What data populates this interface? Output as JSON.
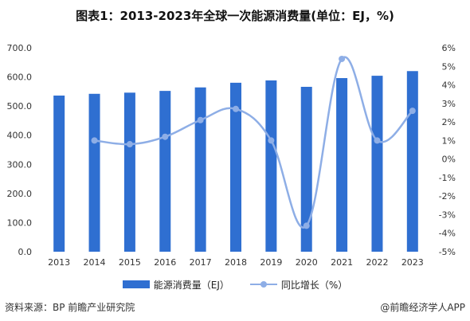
{
  "title": "图表1：2013-2023年全球一次能源消费量(单位：EJ，%)",
  "source": "资料来源：BP 前瞻产业研究院",
  "brand": "@前瞻经济学人APP",
  "chart_data": {
    "type": "bar",
    "categories": [
      "2013",
      "2014",
      "2015",
      "2016",
      "2017",
      "2018",
      "2019",
      "2020",
      "2021",
      "2022",
      "2023"
    ],
    "series": [
      {
        "name": "能源消费量（EJ）",
        "type": "bar",
        "axis": "left",
        "color": "#2f6fd1",
        "values": [
          536,
          542,
          546,
          552,
          564,
          580,
          588,
          566,
          596,
          604,
          620
        ]
      },
      {
        "name": "同比增长（%）",
        "type": "line",
        "axis": "right",
        "color": "#8eaee6",
        "values": [
          null,
          1.0,
          0.8,
          1.2,
          2.1,
          2.7,
          1.0,
          -3.6,
          5.4,
          1.0,
          2.6
        ]
      }
    ],
    "y_left": {
      "min": 0,
      "max": 700,
      "step": 100,
      "tick_labels": [
        "0.0",
        "100.0",
        "200.0",
        "300.0",
        "400.0",
        "500.0",
        "600.0",
        "700.0"
      ]
    },
    "y_right": {
      "min": -5,
      "max": 6,
      "step": 1,
      "tick_labels": [
        "-5%",
        "-4%",
        "-3%",
        "-2%",
        "-1%",
        "0%",
        "1%",
        "2%",
        "3%",
        "4%",
        "5%",
        "6%"
      ]
    },
    "grid": false,
    "legend_position": "bottom"
  }
}
